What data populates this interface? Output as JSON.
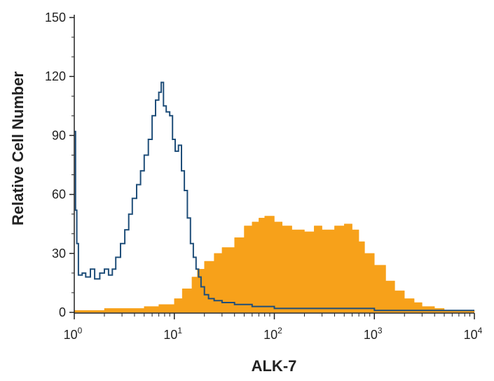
{
  "chart_data": {
    "type": "area",
    "title": "",
    "xlabel": "ALK-7",
    "ylabel": "Relative Cell Number",
    "xscale": "log",
    "xlim": [
      1,
      10000
    ],
    "ylim": [
      0,
      150
    ],
    "x_ticks": [
      {
        "base": "10",
        "exp": "0"
      },
      {
        "base": "10",
        "exp": "1"
      },
      {
        "base": "10",
        "exp": "2"
      },
      {
        "base": "10",
        "exp": "3"
      },
      {
        "base": "10",
        "exp": "4"
      }
    ],
    "y_ticks": [
      "0",
      "30",
      "60",
      "90",
      "120",
      "150"
    ],
    "grid": false,
    "legend": "none",
    "series": [
      {
        "style": "outline",
        "color": "#1f4e79",
        "x": [
          1.0,
          1.03,
          1.06,
          1.1,
          1.2,
          1.3,
          1.45,
          1.6,
          1.8,
          2.0,
          2.2,
          2.4,
          2.6,
          2.9,
          3.2,
          3.5,
          3.8,
          4.2,
          4.6,
          5.0,
          5.5,
          6.0,
          6.5,
          7.0,
          7.4,
          7.8,
          8.3,
          9.0,
          9.6,
          10.2,
          11.0,
          11.8,
          12.6,
          13.5,
          14.5,
          15.5,
          16.5,
          17.5,
          18.5,
          20,
          22,
          25,
          30,
          40,
          60,
          100,
          200,
          500,
          1000,
          3000,
          10000
        ],
        "y": [
          92,
          52,
          35,
          19,
          20,
          18,
          22,
          17,
          20,
          22,
          19,
          22,
          28,
          35,
          42,
          50,
          58,
          65,
          72,
          80,
          88,
          100,
          108,
          112,
          117,
          105,
          102,
          100,
          88,
          82,
          85,
          72,
          62,
          48,
          35,
          28,
          22,
          18,
          13,
          9,
          7,
          6,
          5,
          4,
          3,
          2,
          2,
          2,
          1,
          1,
          1
        ]
      },
      {
        "style": "filled",
        "color": "#f7a11a",
        "x": [
          1.0,
          1.5,
          2,
          3,
          5,
          7,
          10,
          12,
          15,
          17,
          20,
          25,
          30,
          40,
          50,
          60,
          70,
          80,
          100,
          120,
          150,
          200,
          250,
          300,
          400,
          500,
          600,
          700,
          800,
          1000,
          1300,
          1600,
          2000,
          2500,
          3000,
          4000,
          5000,
          10000
        ],
        "y": [
          1,
          1,
          2,
          2,
          3,
          4,
          7,
          12,
          18,
          22,
          26,
          30,
          33,
          38,
          44,
          46,
          48,
          49,
          46,
          44,
          42,
          41,
          44,
          42,
          44,
          45,
          42,
          36,
          30,
          24,
          16,
          11,
          7,
          5,
          3,
          2,
          1,
          1
        ]
      }
    ]
  }
}
